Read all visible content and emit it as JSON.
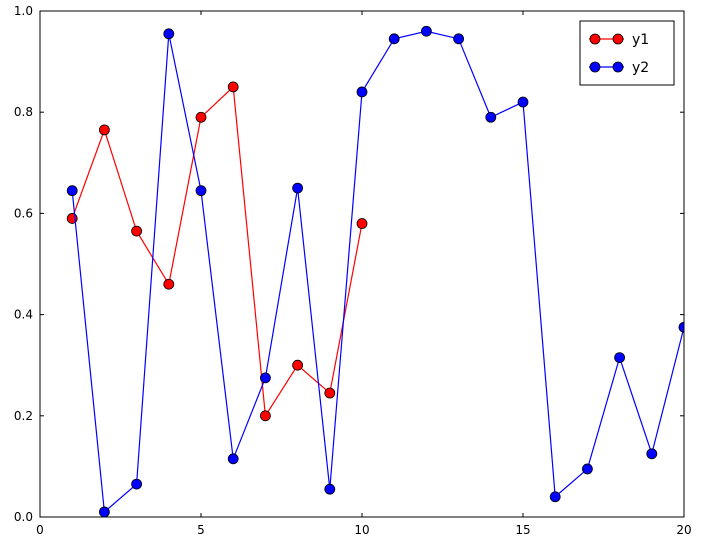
{
  "figure": {
    "background": "#ffffff",
    "axes_color": "#000000",
    "marker_edge_color": "#000000"
  },
  "chart_data": {
    "type": "line",
    "title": "",
    "xlabel": "",
    "ylabel": "",
    "xlim": [
      0,
      20
    ],
    "ylim": [
      0.0,
      1.0
    ],
    "xticks": [
      0,
      5,
      10,
      15,
      20
    ],
    "xtick_labels": [
      "0",
      "5",
      "10",
      "15",
      "20"
    ],
    "yticks": [
      0.0,
      0.2,
      0.4,
      0.6,
      0.8,
      1.0
    ],
    "ytick_labels": [
      "0.0",
      "0.2",
      "0.4",
      "0.6",
      "0.8",
      "1.0"
    ],
    "grid": false,
    "legend": {
      "position": "upper right",
      "entries": [
        "y1",
        "y2"
      ]
    },
    "series": [
      {
        "name": "y1",
        "color": "#ff0000",
        "marker": "circle",
        "x": [
          1,
          2,
          3,
          4,
          5,
          6,
          7,
          8,
          9,
          10
        ],
        "y": [
          0.59,
          0.765,
          0.565,
          0.46,
          0.79,
          0.85,
          0.2,
          0.3,
          0.245,
          0.58
        ]
      },
      {
        "name": "y2",
        "color": "#0000ff",
        "marker": "circle",
        "x": [
          1,
          2,
          3,
          4,
          5,
          6,
          7,
          8,
          9,
          10,
          11,
          12,
          13,
          14,
          15,
          16,
          17,
          18,
          19,
          20
        ],
        "y": [
          0.645,
          0.01,
          0.065,
          0.955,
          0.645,
          0.115,
          0.275,
          0.65,
          0.055,
          0.84,
          0.945,
          0.96,
          0.945,
          0.79,
          0.82,
          0.04,
          0.095,
          0.315,
          0.125,
          0.375
        ]
      }
    ]
  }
}
